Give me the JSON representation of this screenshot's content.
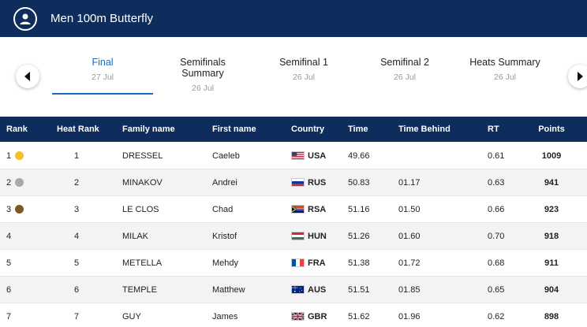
{
  "header": {
    "title": "Men 100m Butterfly"
  },
  "tabs": [
    {
      "name": "Final",
      "date": "27 Jul",
      "active": true
    },
    {
      "name": "Semifinals Summary",
      "date": "26 Jul",
      "active": false
    },
    {
      "name": "Semifinal 1",
      "date": "26 Jul",
      "active": false
    },
    {
      "name": "Semifinal 2",
      "date": "26 Jul",
      "active": false
    },
    {
      "name": "Heats Summary",
      "date": "26 Jul",
      "active": false
    }
  ],
  "table": {
    "headers": {
      "rank": "Rank",
      "heat_rank": "Heat Rank",
      "family": "Family name",
      "first": "First name",
      "country": "Country",
      "time": "Time",
      "behind": "Time Behind",
      "rt": "RT",
      "points": "Points"
    },
    "rows": [
      {
        "rank": "1",
        "medal": "gold",
        "medal_color": "#f2c02a",
        "heat_rank": "1",
        "family": "DRESSEL",
        "first": "Caeleb",
        "country": "USA",
        "time": "49.66",
        "behind": "",
        "rt": "0.61",
        "points": "1009"
      },
      {
        "rank": "2",
        "medal": "silver",
        "medal_color": "#a9a9a9",
        "heat_rank": "2",
        "family": "MINAKOV",
        "first": "Andrei",
        "country": "RUS",
        "time": "50.83",
        "behind": "01.17",
        "rt": "0.63",
        "points": "941"
      },
      {
        "rank": "3",
        "medal": "bronze",
        "medal_color": "#7a5a24",
        "heat_rank": "3",
        "family": "LE CLOS",
        "first": "Chad",
        "country": "RSA",
        "time": "51.16",
        "behind": "01.50",
        "rt": "0.66",
        "points": "923"
      },
      {
        "rank": "4",
        "medal": "",
        "medal_color": "",
        "heat_rank": "4",
        "family": "MILAK",
        "first": "Kristof",
        "country": "HUN",
        "time": "51.26",
        "behind": "01.60",
        "rt": "0.70",
        "points": "918"
      },
      {
        "rank": "5",
        "medal": "",
        "medal_color": "",
        "heat_rank": "5",
        "family": "METELLA",
        "first": "Mehdy",
        "country": "FRA",
        "time": "51.38",
        "behind": "01.72",
        "rt": "0.68",
        "points": "911"
      },
      {
        "rank": "6",
        "medal": "",
        "medal_color": "",
        "heat_rank": "6",
        "family": "TEMPLE",
        "first": "Matthew",
        "country": "AUS",
        "time": "51.51",
        "behind": "01.85",
        "rt": "0.65",
        "points": "904"
      },
      {
        "rank": "7",
        "medal": "",
        "medal_color": "",
        "heat_rank": "7",
        "family": "GUY",
        "first": "James",
        "country": "GBR",
        "time": "51.62",
        "behind": "01.96",
        "rt": "0.62",
        "points": "898"
      }
    ]
  },
  "colors": {
    "header_bg": "#0e2d5c",
    "active_tab": "#1a6bb8"
  },
  "icons": {
    "avatar": "user-icon",
    "prev": "chevron-left-icon",
    "next": "chevron-right-icon"
  }
}
